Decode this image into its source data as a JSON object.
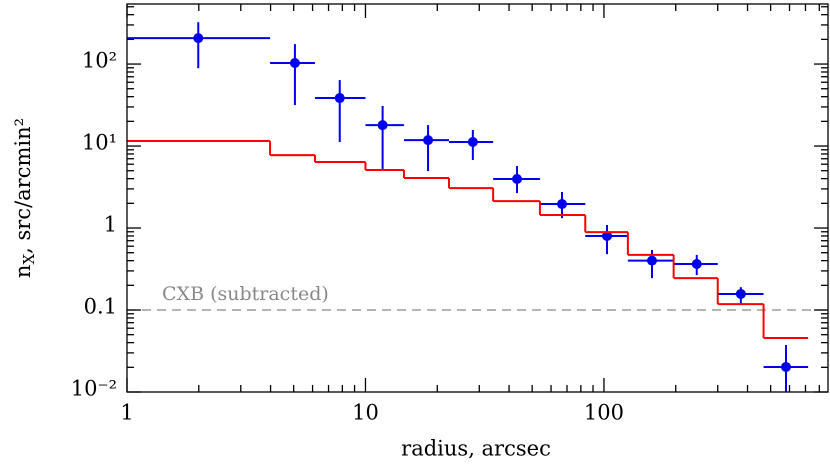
{
  "chart_data": {
    "type": "errorbar_step",
    "xlabel": "radius, arcsec",
    "ylabel": {
      "base": "n",
      "sub": "X",
      "rest": ", src/arcmin²"
    },
    "xscale": "log",
    "yscale": "log",
    "xlim": [
      1,
      870
    ],
    "ylim": [
      0.01,
      540
    ],
    "xticks": [
      1,
      10,
      100
    ],
    "yticks": [
      {
        "value": 0.01,
        "label": "10⁻²"
      },
      0.1,
      1,
      {
        "value": 10,
        "label": "10¹"
      },
      {
        "value": 100,
        "label": "10²"
      }
    ],
    "xminorticks": [
      2,
      3,
      4,
      5,
      6,
      7,
      8,
      9,
      20,
      30,
      40,
      50,
      60,
      70,
      80,
      90,
      200,
      300,
      400,
      500,
      600,
      700,
      800
    ],
    "yminorticks": [
      0.02,
      0.03,
      0.04,
      0.05,
      0.06,
      0.07,
      0.08,
      0.09,
      0.2,
      0.3,
      0.4,
      0.5,
      0.6,
      0.7,
      0.8,
      0.9,
      2,
      3,
      4,
      5,
      6,
      7,
      8,
      9,
      20,
      30,
      40,
      50,
      60,
      70,
      80,
      90,
      200,
      300,
      400,
      500
    ],
    "series": [
      {
        "kind": "points",
        "color": "#0000ee",
        "x": [
          1.99,
          5.06,
          7.8,
          11.8,
          18.3,
          28.2,
          43.2,
          66.7,
          103,
          159,
          245,
          375,
          580
        ],
        "x_low": [
          1,
          3.98,
          6.14,
          10,
          14.5,
          22.4,
          34.3,
          53.9,
          83.5,
          126,
          196,
          300,
          467
        ],
        "x_high": [
          3.98,
          6.14,
          10,
          14.5,
          22.4,
          34.3,
          53.9,
          83.5,
          126,
          196,
          300,
          467,
          718
        ],
        "values": [
          207,
          103,
          38.5,
          18.0,
          11.8,
          11.2,
          3.96,
          1.96,
          0.8,
          0.4,
          0.364,
          0.157,
          0.0202
        ],
        "y_low": [
          89,
          31.6,
          11.2,
          5.1,
          4.95,
          6.75,
          2.67,
          1.32,
          0.48,
          0.245,
          0.267,
          0.118,
          0.01
        ],
        "y_high": [
          324,
          175,
          63.8,
          30.8,
          18.0,
          15.7,
          5.7,
          2.75,
          1.09,
          0.54,
          0.47,
          0.19,
          0.0374
        ]
      },
      {
        "kind": "step",
        "color": "#ff0000",
        "edges": [
          1,
          3.98,
          6.14,
          10,
          14.5,
          22.4,
          34.3,
          53.9,
          83.5,
          126,
          196,
          300,
          467,
          718
        ],
        "values": [
          11.5,
          7.76,
          6.38,
          5.1,
          4.07,
          3.07,
          2.13,
          1.44,
          0.89,
          0.47,
          0.245,
          0.118,
          0.0456
        ]
      }
    ],
    "reference_line": {
      "value": 0.1,
      "color": "#888888",
      "label": "CXB (subtracted)"
    }
  }
}
